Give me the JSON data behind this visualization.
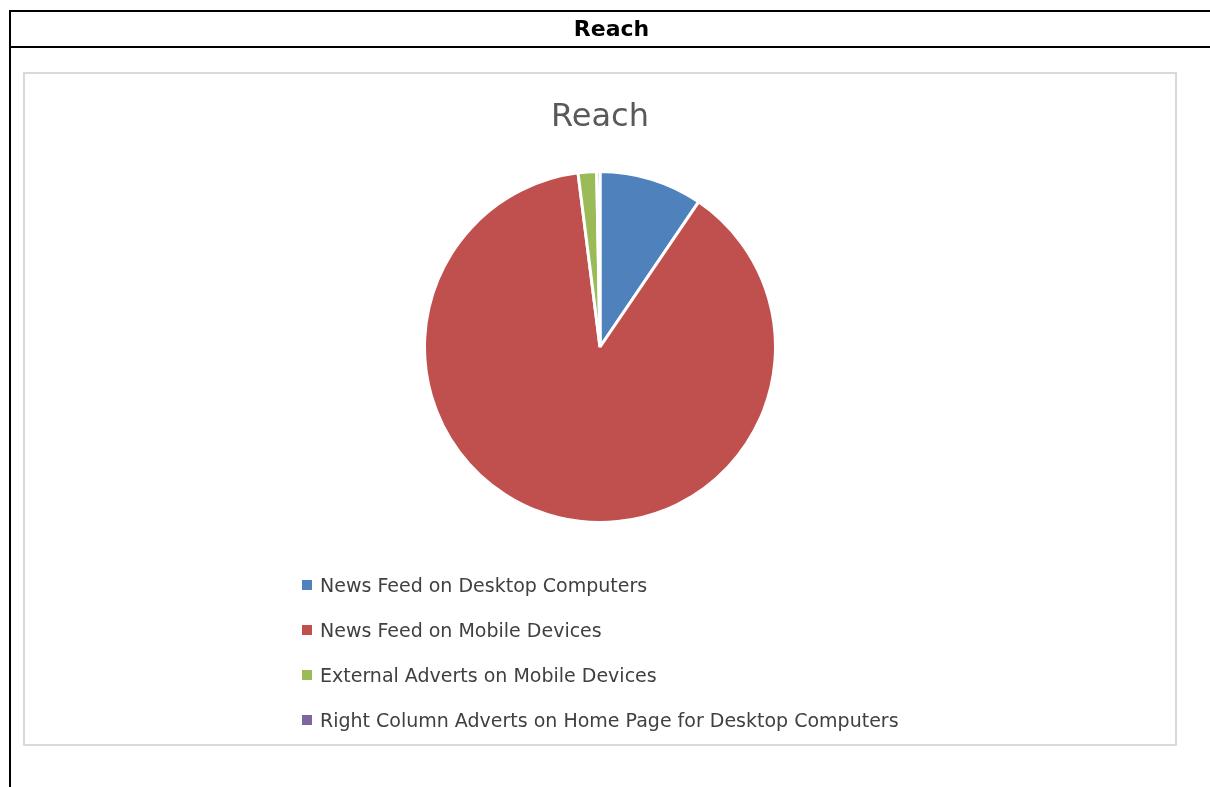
{
  "chart_data": {
    "type": "pie",
    "title": "Reach",
    "annotations": [
      "Reach"
    ],
    "categories": [
      "News Feed on Desktop Computers",
      "News Feed on Mobile Devices",
      "External Adverts on Mobile Devices",
      "Right Column Adverts on Home Page for Desktop Computers"
    ],
    "values": [
      9.5,
      88.5,
      1.7,
      0.3
    ],
    "colors": [
      "#4f81bd",
      "#c0504d",
      "#9bbb59",
      "#8064a2"
    ],
    "legend": "bottom"
  }
}
